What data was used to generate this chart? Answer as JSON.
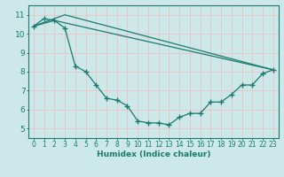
{
  "xlabel": "Humidex (Indice chaleur)",
  "xlim": [
    -0.5,
    23.5
  ],
  "ylim": [
    4.5,
    11.5
  ],
  "yticks": [
    5,
    6,
    7,
    8,
    9,
    10,
    11
  ],
  "xticks": [
    0,
    1,
    2,
    3,
    4,
    5,
    6,
    7,
    8,
    9,
    10,
    11,
    12,
    13,
    14,
    15,
    16,
    17,
    18,
    19,
    20,
    21,
    22,
    23
  ],
  "xtick_labels": [
    "0",
    "1",
    "2",
    "3",
    "4",
    "5",
    "6",
    "7",
    "8",
    "9",
    "10",
    "11",
    "12",
    "13",
    "14",
    "15",
    "16",
    "17",
    "18",
    "19",
    "20",
    "21",
    "22",
    "23"
  ],
  "bg_color": "#cde8e8",
  "grid_color": "#e8c8c8",
  "line_color": "#1a7a6e",
  "line1_x": [
    0,
    1,
    2,
    3,
    4,
    5,
    6,
    7,
    8,
    9,
    10,
    11,
    12,
    13,
    14,
    15,
    16,
    17,
    18,
    19,
    20,
    21,
    22,
    23
  ],
  "line1_y": [
    10.4,
    10.8,
    10.7,
    10.3,
    8.3,
    8.0,
    7.3,
    6.6,
    6.5,
    6.2,
    5.4,
    5.3,
    5.3,
    5.2,
    5.6,
    5.8,
    5.8,
    6.4,
    6.4,
    6.8,
    7.3,
    7.3,
    7.9,
    8.1
  ],
  "line2_x": [
    0,
    3,
    23
  ],
  "line2_y": [
    10.4,
    11.0,
    8.1
  ],
  "line3_x": [
    0,
    2,
    23
  ],
  "line3_y": [
    10.4,
    10.7,
    8.1
  ],
  "tick_fontsize": 5.5,
  "xlabel_fontsize": 6.5
}
